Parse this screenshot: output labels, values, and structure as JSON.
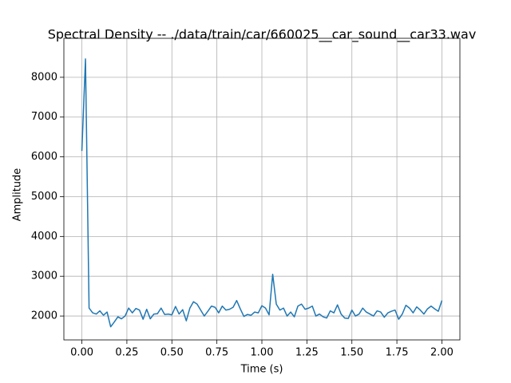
{
  "chart_data": {
    "type": "line",
    "title": "Spectral Density -- ./data/train/car/660025__car_sound__car33.wav",
    "x_label": "Time (s)",
    "y_label": "Amplitude",
    "x": [
      0,
      0.02,
      0.04,
      0.06,
      0.08,
      0.1,
      0.12,
      0.14,
      0.16,
      0.18,
      0.2,
      0.22,
      0.24,
      0.26,
      0.28,
      0.3,
      0.32,
      0.34,
      0.36,
      0.38,
      0.4,
      0.42,
      0.44,
      0.46,
      0.48,
      0.5,
      0.52,
      0.54,
      0.56,
      0.58,
      0.6,
      0.62,
      0.64,
      0.66,
      0.68,
      0.7,
      0.72,
      0.74,
      0.76,
      0.78,
      0.8,
      0.82,
      0.84,
      0.86,
      0.88,
      0.9,
      0.92,
      0.94,
      0.96,
      0.98,
      1.0,
      1.02,
      1.04,
      1.06,
      1.08,
      1.1,
      1.12,
      1.14,
      1.16,
      1.18,
      1.2,
      1.22,
      1.24,
      1.26,
      1.28,
      1.3,
      1.32,
      1.34,
      1.36,
      1.38,
      1.4,
      1.42,
      1.44,
      1.46,
      1.48,
      1.5,
      1.52,
      1.54,
      1.56,
      1.58,
      1.6,
      1.62,
      1.64,
      1.66,
      1.68,
      1.7,
      1.72,
      1.74,
      1.76,
      1.78,
      1.8,
      1.82,
      1.84,
      1.86,
      1.88,
      1.9,
      1.92,
      1.94,
      1.96,
      1.98,
      2.0
    ],
    "values": [
      6150,
      8460,
      2200,
      2080,
      2050,
      2130,
      2020,
      2100,
      1730,
      1850,
      1980,
      1930,
      2000,
      2200,
      2080,
      2190,
      2150,
      1920,
      2170,
      1930,
      2050,
      2060,
      2200,
      2040,
      2050,
      2030,
      2240,
      2050,
      2160,
      1880,
      2200,
      2360,
      2300,
      2150,
      2000,
      2120,
      2250,
      2220,
      2080,
      2250,
      2150,
      2170,
      2220,
      2390,
      2180,
      1990,
      2040,
      2020,
      2100,
      2080,
      2260,
      2200,
      2030,
      3050,
      2300,
      2150,
      2200,
      2000,
      2100,
      1980,
      2250,
      2300,
      2170,
      2200,
      2250,
      2000,
      2050,
      1980,
      1950,
      2130,
      2080,
      2280,
      2050,
      1950,
      1940,
      2150,
      2000,
      2050,
      2200,
      2100,
      2050,
      2000,
      2130,
      2100,
      1970,
      2080,
      2120,
      2150,
      1920,
      2050,
      2270,
      2200,
      2080,
      2230,
      2150,
      2050,
      2180,
      2250,
      2180,
      2120,
      2390
    ],
    "color": "#1f77b4",
    "xlim": [
      -0.1,
      2.1
    ],
    "xticks": [
      {
        "value": 0,
        "label": "0.00"
      },
      {
        "value": 0.25,
        "label": "0.25"
      },
      {
        "value": 0.5,
        "label": "0.50"
      },
      {
        "value": 0.75,
        "label": "0.75"
      },
      {
        "value": 1,
        "label": "1.00"
      },
      {
        "value": 1.25,
        "label": "1.25"
      },
      {
        "value": 1.5,
        "label": "1.50"
      },
      {
        "value": 1.75,
        "label": "1.75"
      },
      {
        "value": 2,
        "label": "2.00"
      }
    ],
    "ylim": [
      1400,
      8980
    ],
    "yticks": [
      2000,
      3000,
      4000,
      5000,
      6000,
      7000,
      8000
    ],
    "grid": true
  }
}
